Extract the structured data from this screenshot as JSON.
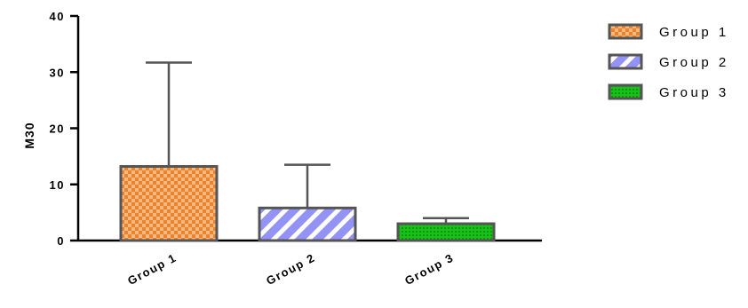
{
  "chart_data": {
    "type": "bar",
    "title": "",
    "xlabel": "",
    "ylabel": "M30",
    "ylim": [
      0,
      40
    ],
    "yticks": [
      0,
      10,
      20,
      30,
      40
    ],
    "categories": [
      "Group 1",
      "Group 2",
      "Group 3"
    ],
    "values": [
      13.2,
      5.8,
      3.0
    ],
    "error_upper": [
      31.7,
      13.5,
      4.0
    ],
    "error_type": "upper whisker",
    "legend": {
      "position": "top-right",
      "entries": [
        "Group 1",
        "Group 2",
        "Group 3"
      ]
    },
    "grid": false,
    "series_styles": [
      {
        "fill": "#f5a15a",
        "pattern": "checkerboard",
        "pattern_color": "#e07a2a"
      },
      {
        "fill": "#9b9bff",
        "pattern": "diagonal-stripes",
        "pattern_color": "#ffffff"
      },
      {
        "fill": "#14b814",
        "pattern": "dots",
        "pattern_color": "#0c8f0c"
      }
    ],
    "border_color": "#555555"
  }
}
